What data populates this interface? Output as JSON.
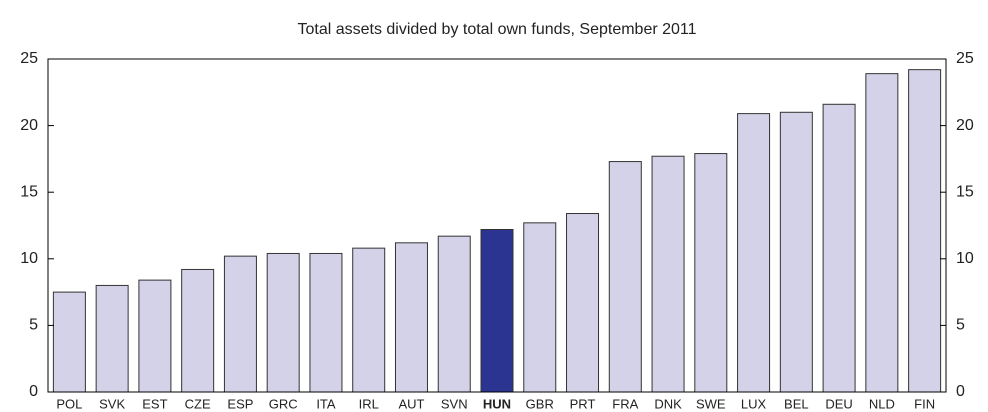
{
  "chart_data": {
    "type": "bar",
    "title": "Total assets divided by total own funds, September 2011",
    "categories": [
      "POL",
      "SVK",
      "EST",
      "CZE",
      "ESP",
      "GRC",
      "ITA",
      "IRL",
      "AUT",
      "SVN",
      "HUN",
      "GBR",
      "PRT",
      "FRA",
      "DNK",
      "SWE",
      "LUX",
      "BEL",
      "DEU",
      "NLD",
      "FIN"
    ],
    "values": [
      7.5,
      8.0,
      8.4,
      9.2,
      10.2,
      10.4,
      10.4,
      10.8,
      11.2,
      11.7,
      12.2,
      12.7,
      13.4,
      17.3,
      17.7,
      17.9,
      20.9,
      21.0,
      21.6,
      23.9,
      24.2
    ],
    "color": "#d3d2e8",
    "colors": [
      "#d3d2e8",
      "#d3d2e8",
      "#d3d2e8",
      "#d3d2e8",
      "#d3d2e8",
      "#d3d2e8",
      "#d3d2e8",
      "#d3d2e8",
      "#d3d2e8",
      "#d3d2e8",
      "#2b3591",
      "#d3d2e8",
      "#d3d2e8",
      "#d3d2e8",
      "#d3d2e8",
      "#d3d2e8",
      "#d3d2e8",
      "#d3d2e8",
      "#d3d2e8",
      "#d3d2e8",
      "#d3d2e8"
    ],
    "ylim": [
      0,
      25
    ],
    "yticks": [
      0,
      5,
      10,
      15,
      20,
      25
    ],
    "y2lim": [
      0,
      25
    ],
    "y2ticks": [
      0,
      5,
      10,
      15,
      20,
      25
    ],
    "grid": false
  }
}
